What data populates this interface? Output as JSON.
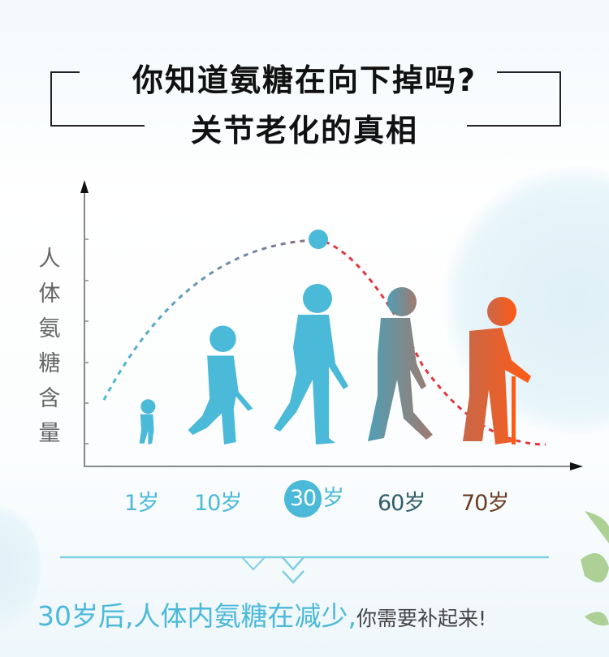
{
  "header": {
    "line1": "你知道氨糖在向下掉吗?",
    "line2": "关节老化的真相"
  },
  "chart": {
    "y_label": "人体氨糖含量",
    "ages": [
      {
        "label": "1",
        "unit": "岁",
        "color": "#4bb9d8"
      },
      {
        "label": "10",
        "unit": "岁",
        "color": "#4bb9d8"
      },
      {
        "label": "30",
        "unit": "岁",
        "color": "#4bb9d8",
        "highlight": true
      },
      {
        "label": "60",
        "unit": "岁",
        "color": "#2f5d6b"
      },
      {
        "label": "70",
        "unit": "岁",
        "color": "#6b3b22"
      }
    ],
    "peak_age": "30",
    "colors": {
      "rise": "#4bb9d8",
      "peak": "#8a6c86",
      "fall": "#e0353f",
      "elder": "#ff5a14"
    }
  },
  "footer": {
    "main": "30岁后,人体内氨糖在减少,",
    "sub": "你需要补起来!"
  }
}
